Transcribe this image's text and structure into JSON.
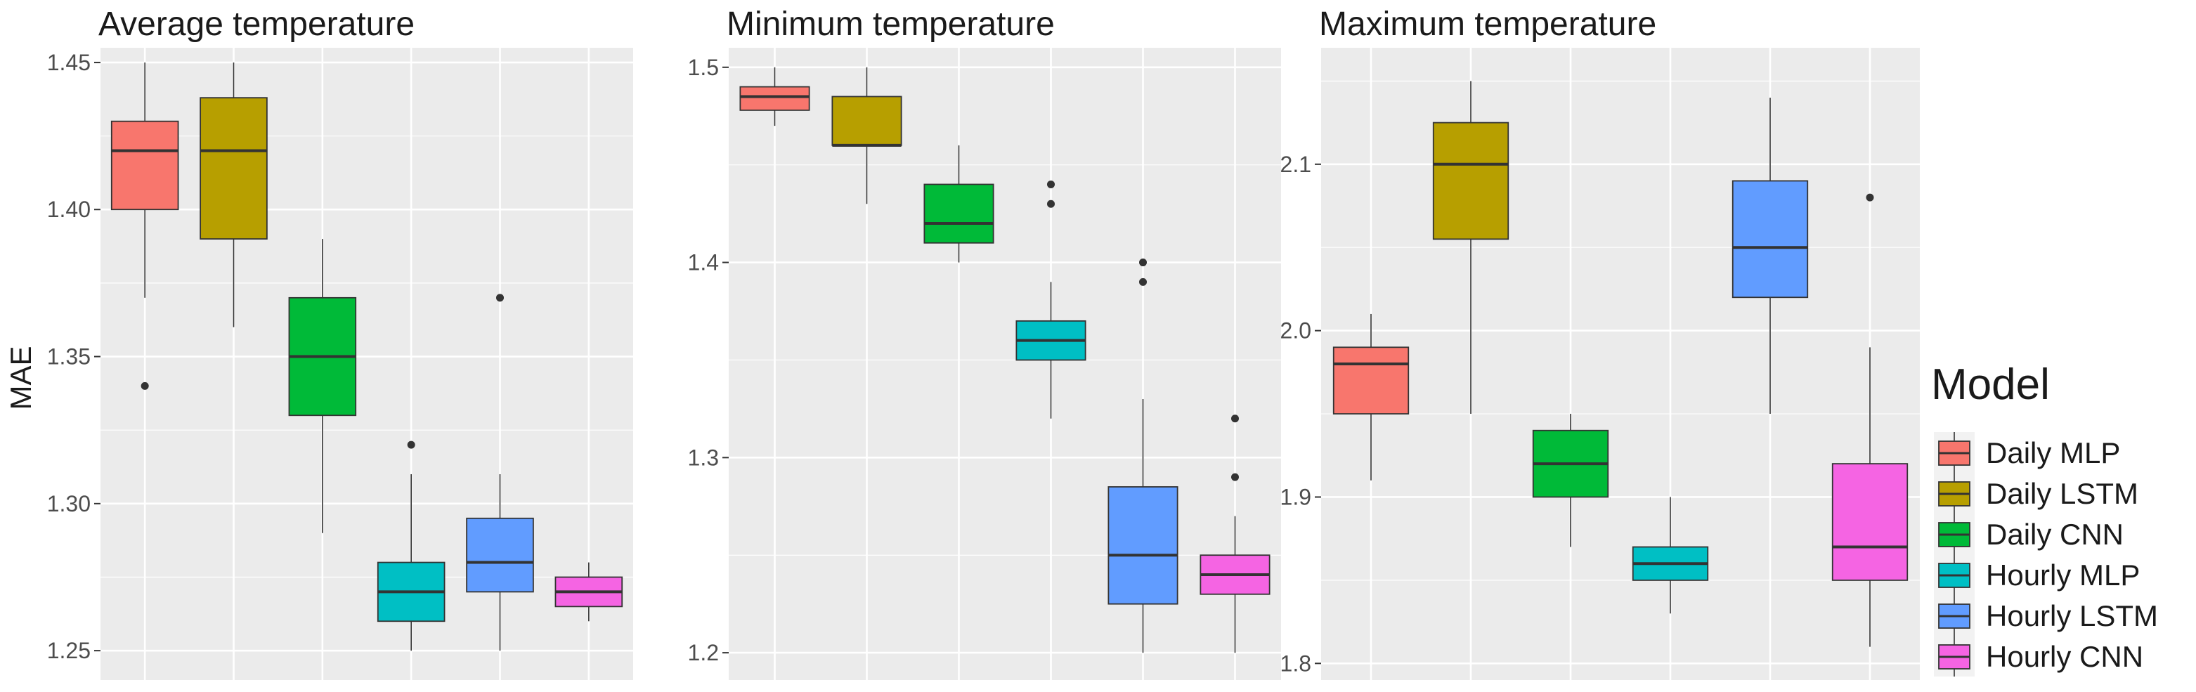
{
  "ylabel": "MAE",
  "legend": {
    "title": "Model",
    "placement": "right",
    "entries": [
      {
        "label": "Daily MLP",
        "color": "#F8766D"
      },
      {
        "label": "Daily LSTM",
        "color": "#B79F00"
      },
      {
        "label": "Daily CNN",
        "color": "#00BA38"
      },
      {
        "label": "Hourly MLP",
        "color": "#00BFC4"
      },
      {
        "label": "Hourly LSTM",
        "color": "#619CFF"
      },
      {
        "label": "Hourly CNN",
        "color": "#F564E3"
      }
    ]
  },
  "colors": {
    "panel_background": "#EBEBEB",
    "grid": "#FFFFFF",
    "box_line": "#333333",
    "text": "#1A1A1A",
    "tick_text": "#4D4D4D"
  },
  "chart_data": [
    {
      "type": "boxplot",
      "title": "Average temperature",
      "xlabel": "",
      "ylabel": "MAE",
      "ylim": [
        1.24,
        1.455
      ],
      "yticks": [
        1.25,
        1.3,
        1.35,
        1.4,
        1.45
      ],
      "ytick_labels": [
        "1.25",
        "1.30",
        "1.35",
        "1.40",
        "1.45"
      ],
      "grid": true,
      "series": [
        {
          "name": "Daily MLP",
          "min": 1.37,
          "q1": 1.4,
          "median": 1.42,
          "q3": 1.43,
          "max": 1.45,
          "outliers": [
            1.34
          ]
        },
        {
          "name": "Daily LSTM",
          "min": 1.36,
          "q1": 1.39,
          "median": 1.42,
          "q3": 1.438,
          "max": 1.45,
          "outliers": []
        },
        {
          "name": "Daily CNN",
          "min": 1.29,
          "q1": 1.33,
          "median": 1.35,
          "q3": 1.37,
          "max": 1.39,
          "outliers": []
        },
        {
          "name": "Hourly MLP",
          "min": 1.25,
          "q1": 1.26,
          "median": 1.27,
          "q3": 1.28,
          "max": 1.31,
          "outliers": [
            1.32
          ]
        },
        {
          "name": "Hourly LSTM",
          "min": 1.25,
          "q1": 1.27,
          "median": 1.28,
          "q3": 1.295,
          "max": 1.31,
          "outliers": [
            1.37
          ]
        },
        {
          "name": "Hourly CNN",
          "min": 1.26,
          "q1": 1.265,
          "median": 1.27,
          "q3": 1.275,
          "max": 1.28,
          "outliers": []
        }
      ]
    },
    {
      "type": "boxplot",
      "title": "Minimum temperature",
      "xlabel": "",
      "ylabel": "",
      "ylim": [
        1.186,
        1.51
      ],
      "yticks": [
        1.2,
        1.3,
        1.4,
        1.5
      ],
      "ytick_labels": [
        "1.2",
        "1.3",
        "1.4",
        "1.5"
      ],
      "grid": true,
      "series": [
        {
          "name": "Daily MLP",
          "min": 1.47,
          "q1": 1.478,
          "median": 1.485,
          "q3": 1.49,
          "max": 1.5,
          "outliers": []
        },
        {
          "name": "Daily LSTM",
          "min": 1.43,
          "q1": 1.46,
          "median": 1.46,
          "q3": 1.485,
          "max": 1.5,
          "outliers": []
        },
        {
          "name": "Daily CNN",
          "min": 1.4,
          "q1": 1.41,
          "median": 1.42,
          "q3": 1.44,
          "max": 1.46,
          "outliers": []
        },
        {
          "name": "Hourly MLP",
          "min": 1.32,
          "q1": 1.35,
          "median": 1.36,
          "q3": 1.37,
          "max": 1.39,
          "outliers": [
            1.43,
            1.44
          ]
        },
        {
          "name": "Hourly LSTM",
          "min": 1.2,
          "q1": 1.225,
          "median": 1.25,
          "q3": 1.285,
          "max": 1.33,
          "outliers": [
            1.39,
            1.4
          ]
        },
        {
          "name": "Hourly CNN",
          "min": 1.2,
          "q1": 1.23,
          "median": 1.24,
          "q3": 1.25,
          "max": 1.27,
          "outliers": [
            1.29,
            1.32
          ]
        }
      ]
    },
    {
      "type": "boxplot",
      "title": "Maximum temperature",
      "xlabel": "",
      "ylabel": "",
      "ylim": [
        1.79,
        2.17
      ],
      "yticks": [
        1.8,
        1.9,
        2.0,
        2.1
      ],
      "ytick_labels": [
        "1.8",
        "1.9",
        "2.0",
        "2.1"
      ],
      "grid": true,
      "series": [
        {
          "name": "Daily MLP",
          "min": 1.91,
          "q1": 1.95,
          "median": 1.98,
          "q3": 1.99,
          "max": 2.01,
          "outliers": []
        },
        {
          "name": "Daily LSTM",
          "min": 1.95,
          "q1": 2.055,
          "median": 2.1,
          "q3": 2.125,
          "max": 2.15,
          "outliers": []
        },
        {
          "name": "Daily CNN",
          "min": 1.87,
          "q1": 1.9,
          "median": 1.92,
          "q3": 1.94,
          "max": 1.95,
          "outliers": []
        },
        {
          "name": "Hourly MLP",
          "min": 1.83,
          "q1": 1.85,
          "median": 1.86,
          "q3": 1.87,
          "max": 1.9,
          "outliers": []
        },
        {
          "name": "Hourly LSTM",
          "min": 1.95,
          "q1": 2.02,
          "median": 2.05,
          "q3": 2.09,
          "max": 2.14,
          "outliers": []
        },
        {
          "name": "Hourly CNN",
          "min": 1.81,
          "q1": 1.85,
          "median": 1.87,
          "q3": 1.92,
          "max": 1.99,
          "outliers": [
            2.08
          ]
        }
      ]
    }
  ]
}
